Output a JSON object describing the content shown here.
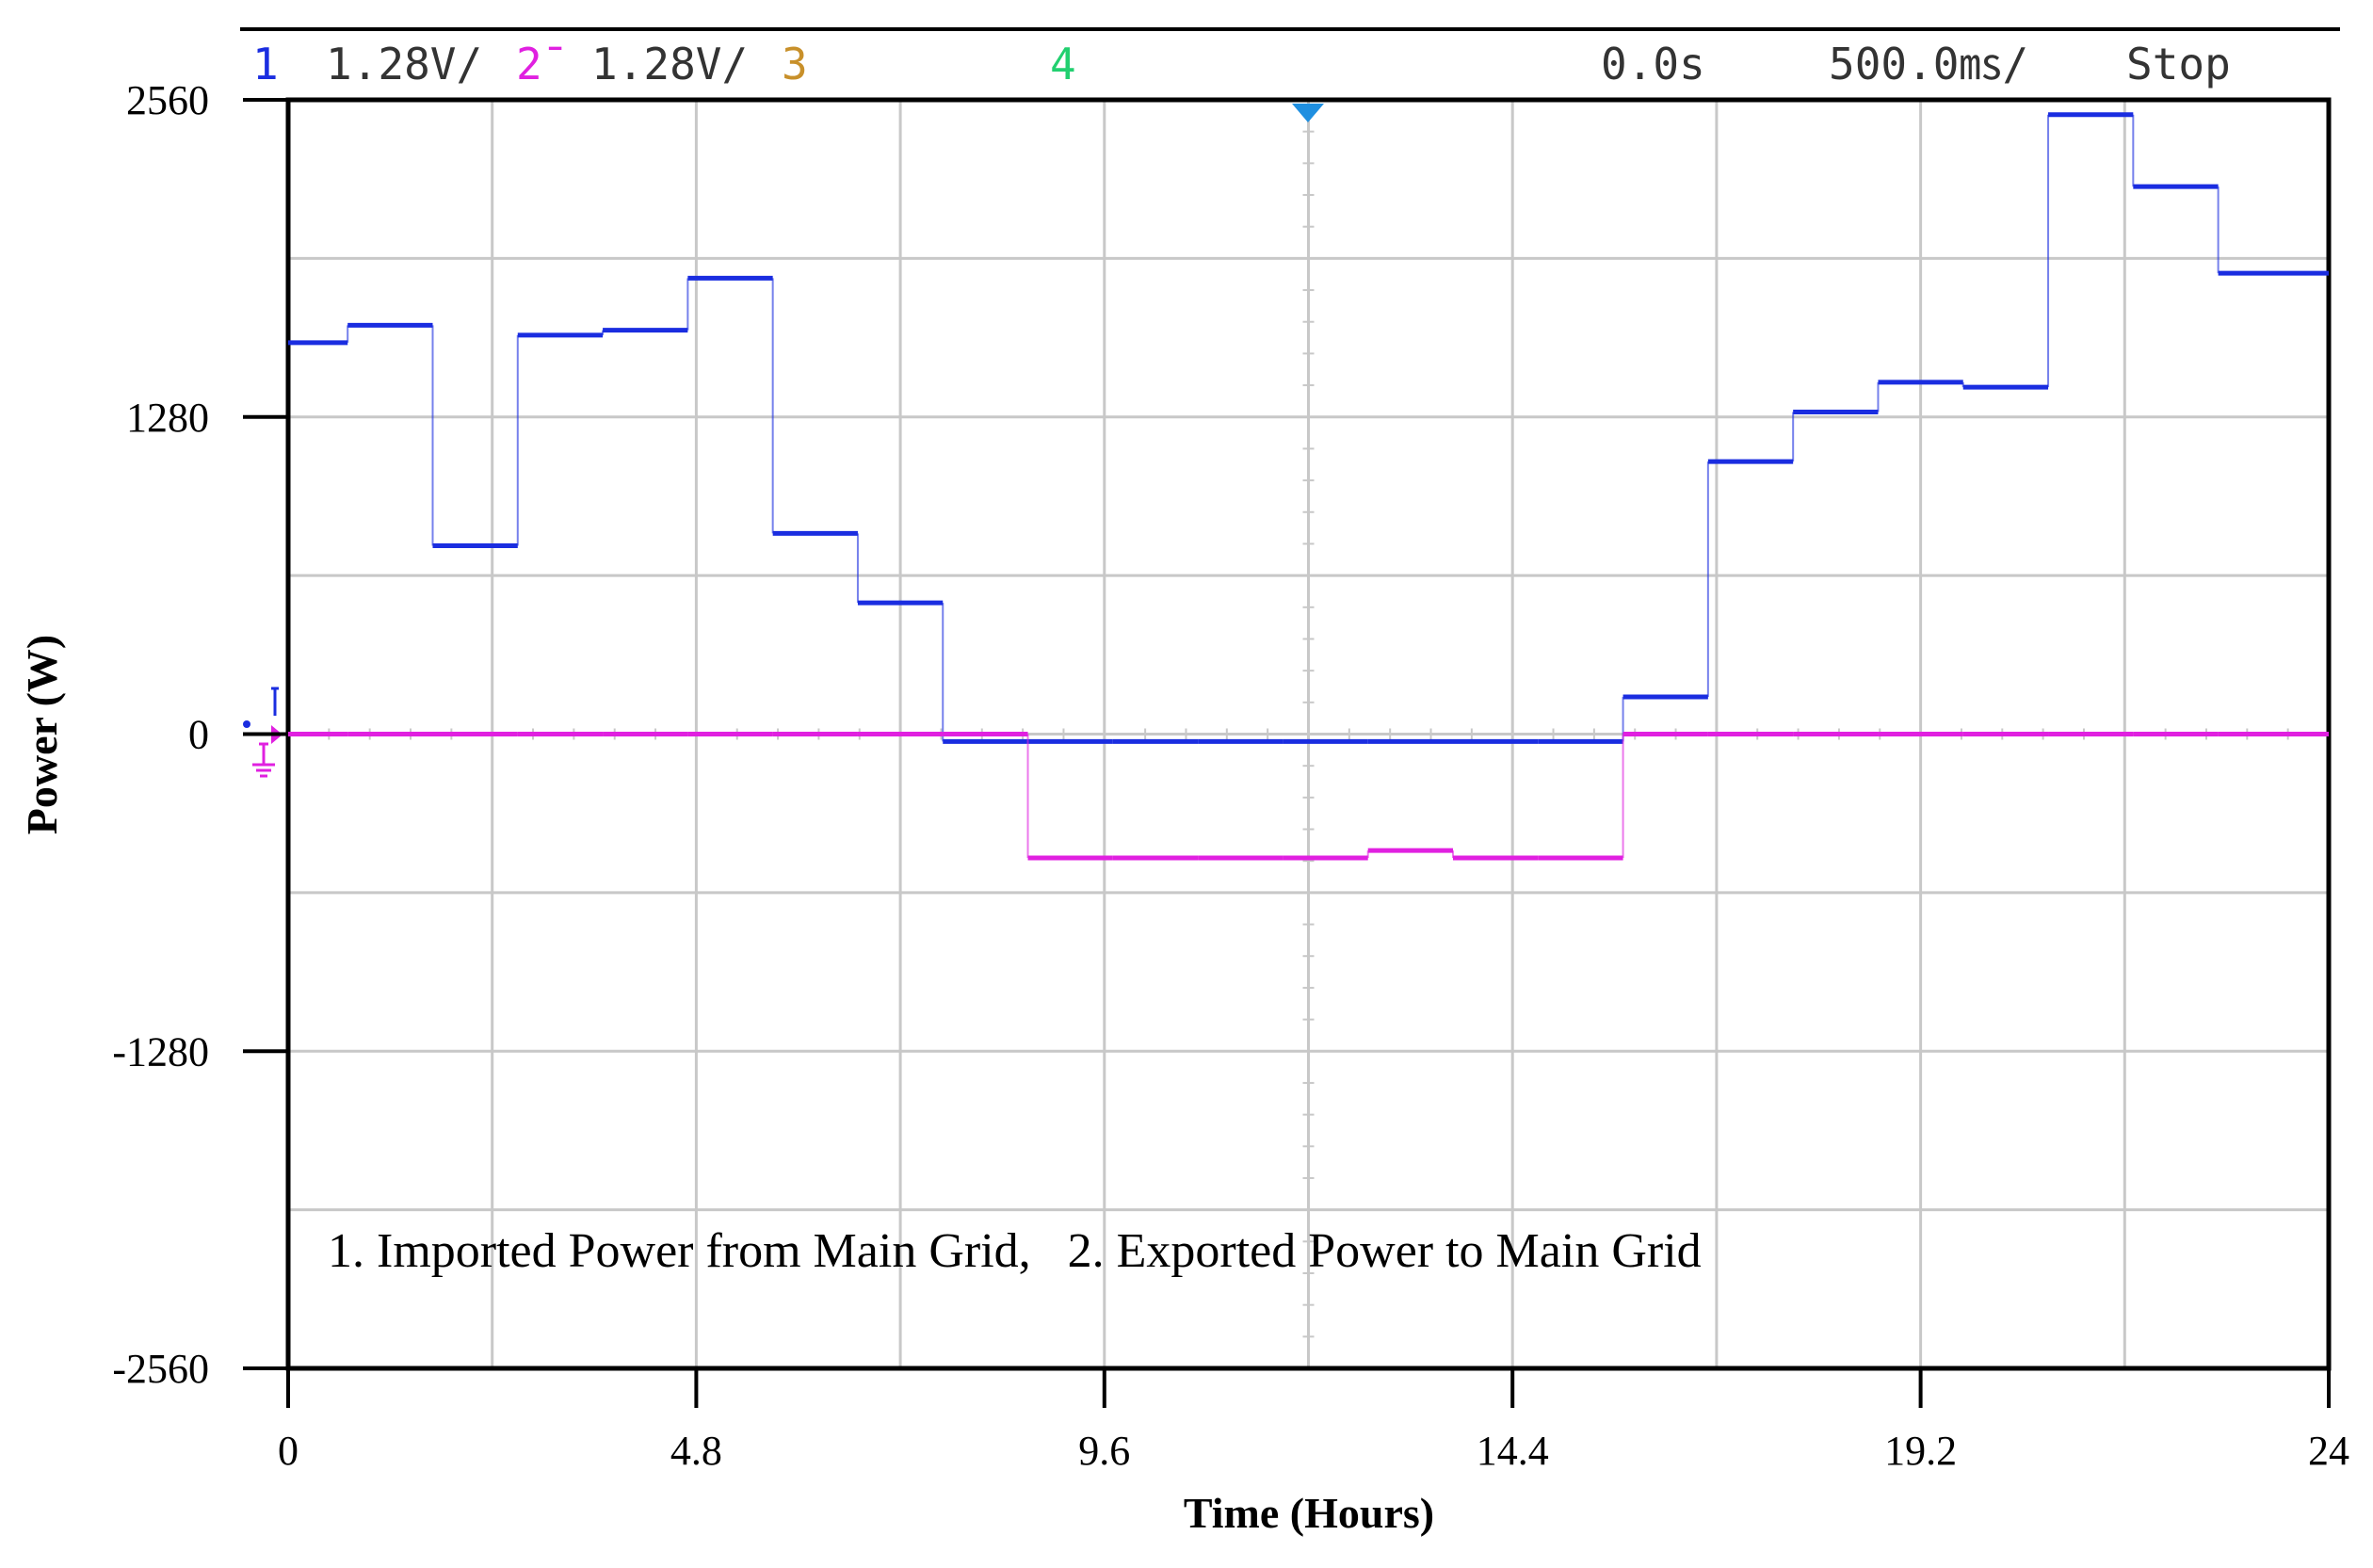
{
  "status_bar": {
    "ch1_num": "1",
    "ch1_scale": "1.28V/",
    "ch2_num": "2̄",
    "ch2_scale": "1.28V/",
    "ch3_num": "3",
    "ch4_num": "4",
    "time_offset": "0.0s",
    "timebase": "500.0㎳/",
    "run_state": "Stop"
  },
  "colors": {
    "ch1": "#1a2de0",
    "ch2": "#e020e0",
    "ch3": "#c8902a",
    "ch4": "#22d070",
    "grid": "#c8c8c8",
    "trigger": "#1f8fe0"
  },
  "chart_data": {
    "type": "line",
    "title": "",
    "xlabel": "Time (Hours)",
    "ylabel": "Power (W)",
    "xlim": [
      0,
      24
    ],
    "ylim": [
      -2560,
      2560
    ],
    "x_ticks": [
      "0",
      "4.8",
      "9.6",
      "14.4",
      "19.2",
      "24"
    ],
    "y_ticks": [
      "2560",
      "1280",
      "0",
      "-1280",
      "-2560"
    ],
    "grid": true,
    "annotation": "1. Imported Power from Main Grid,   2. Exported Power to Main Grid",
    "step": true,
    "series": [
      {
        "name": "1. Imported Power from Main Grid",
        "color_key": "ch1",
        "x": [
          0,
          0.7,
          1.7,
          2.7,
          3.7,
          4.7,
          5.7,
          6.7,
          7.7,
          8.7,
          9.7,
          10.7,
          11.7,
          12.7,
          13.7,
          14.7,
          15.7,
          16.7,
          17.7,
          18.7,
          19.7,
          20.7,
          21.7,
          22.7
        ],
        "values": [
          1580,
          1650,
          760,
          1610,
          1630,
          1840,
          810,
          530,
          -30,
          -30,
          -30,
          -30,
          -30,
          -30,
          -30,
          -30,
          150,
          1100,
          1300,
          1420,
          1400,
          2500,
          2210,
          1860
        ]
      },
      {
        "name": "2. Exported Power to Main Grid",
        "color_key": "ch2",
        "x": [
          0,
          0.7,
          1.7,
          2.7,
          3.7,
          4.7,
          5.7,
          6.7,
          7.7,
          8.7,
          9.7,
          10.7,
          11.7,
          12.7,
          13.7,
          14.7,
          15.7,
          16.7,
          17.7,
          18.7,
          19.7,
          20.7,
          21.7,
          22.7
        ],
        "values": [
          0,
          0,
          0,
          0,
          0,
          0,
          0,
          0,
          0,
          -500,
          -500,
          -500,
          -500,
          -470,
          -500,
          -500,
          0,
          0,
          0,
          0,
          0,
          0,
          0,
          0
        ]
      }
    ]
  }
}
